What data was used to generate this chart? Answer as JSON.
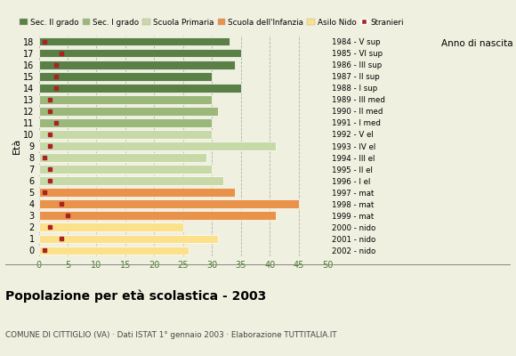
{
  "ages": [
    0,
    1,
    2,
    3,
    4,
    5,
    6,
    7,
    8,
    9,
    10,
    11,
    12,
    13,
    14,
    15,
    16,
    17,
    18
  ],
  "years": [
    "2002 - nido",
    "2001 - nido",
    "2000 - nido",
    "1999 - mat",
    "1998 - mat",
    "1997 - mat",
    "1996 - I el",
    "1995 - II el",
    "1994 - III el",
    "1993 - IV el",
    "1992 - V el",
    "1991 - I med",
    "1990 - II med",
    "1989 - III med",
    "1988 - I sup",
    "1987 - II sup",
    "1986 - III sup",
    "1985 - VI sup",
    "1984 - V sup"
  ],
  "bar_values": [
    26,
    31,
    25,
    41,
    45,
    34,
    32,
    30,
    29,
    41,
    30,
    30,
    31,
    30,
    35,
    30,
    34,
    35,
    33
  ],
  "stranieri_values": [
    1,
    4,
    2,
    5,
    4,
    1,
    2,
    2,
    1,
    2,
    2,
    3,
    2,
    2,
    3,
    3,
    3,
    4,
    1
  ],
  "bar_colors": [
    "#fce08a",
    "#fce08a",
    "#fce08a",
    "#e8924a",
    "#e8924a",
    "#e8924a",
    "#c8d9a8",
    "#c8d9a8",
    "#c8d9a8",
    "#c8d9a8",
    "#c8d9a8",
    "#9bb87a",
    "#9bb87a",
    "#9bb87a",
    "#5a8045",
    "#5a8045",
    "#5a8045",
    "#5a8045",
    "#5a8045"
  ],
  "legend_labels": [
    "Sec. II grado",
    "Sec. I grado",
    "Scuola Primaria",
    "Scuola dell'Infanzia",
    "Asilo Nido",
    "Stranieri"
  ],
  "legend_colors": [
    "#5a8045",
    "#9bb87a",
    "#c8d9a8",
    "#e8924a",
    "#fce08a",
    "#aa2222"
  ],
  "ylabel": "Età",
  "ylabel2": "Anno di nascita",
  "title": "Popolazione per età scolastica - 2003",
  "subtitle": "COMUNE DI CITTIGLIO (VA) · Dati ISTAT 1° gennaio 2003 · Elaborazione TUTTITALIA.IT",
  "xlim": [
    0,
    50
  ],
  "xticks": [
    0,
    5,
    10,
    15,
    20,
    25,
    30,
    35,
    40,
    45,
    50
  ],
  "stranieri_color": "#aa2222",
  "background_color": "#f0f0e0"
}
